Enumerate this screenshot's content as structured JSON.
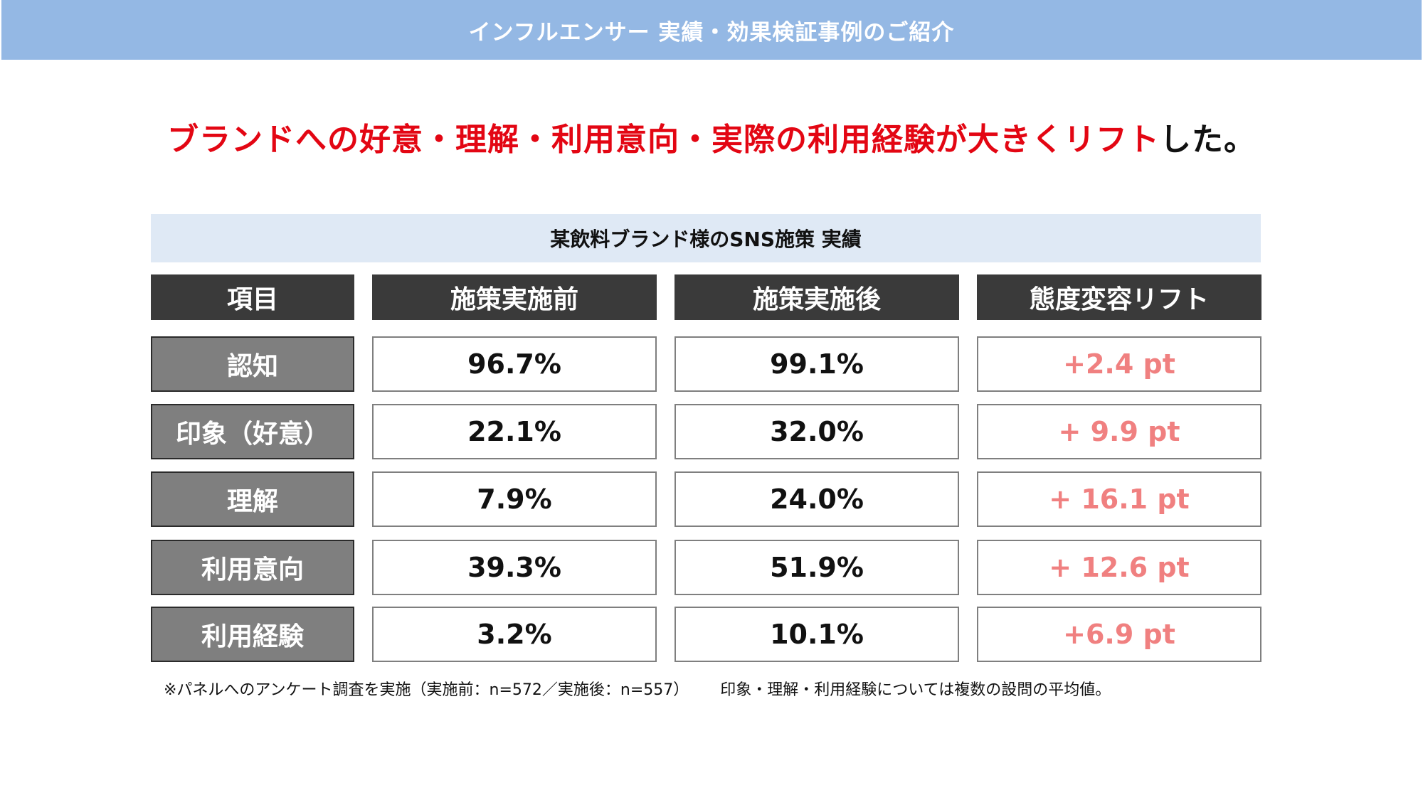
{
  "banner": {
    "title": "インフルエンサー 実績・効果検証事例のご紹介"
  },
  "headline": {
    "accent_text": "ブランドへの好意・理解・利用意向・実際の利用経験が大きくリフト",
    "suffix_text": "した。"
  },
  "table": {
    "caption": "某飲料ブランド様のSNS施策 実績",
    "headers": [
      "項目",
      "施策実施前",
      "施策実施後",
      "態度変容リフト"
    ],
    "rows": [
      {
        "label": "認知",
        "before": "96.7%",
        "after": "99.1%",
        "lift": "+2.4 pt"
      },
      {
        "label": "印象（好意）",
        "before": "22.1%",
        "after": "32.0%",
        "lift": "+ 9.9 pt"
      },
      {
        "label": "理解",
        "before": "7.9%",
        "after": "24.0%",
        "lift": "+ 16.1 pt"
      },
      {
        "label": "利用意向",
        "before": "39.3%",
        "after": "51.9%",
        "lift": "+ 12.6 pt"
      },
      {
        "label": "利用経験",
        "before": "3.2%",
        "after": "10.1%",
        "lift": "+6.9 pt"
      }
    ]
  },
  "footnote": {
    "survey": "※パネルへのアンケート調査を実施（実施前：n=572／実施後：n=557）",
    "note": "印象・理解・利用経験については複数の設問の平均値。"
  },
  "colors": {
    "banner": "#94b8e4",
    "accent_red": "#e30613",
    "lift_pink": "#f08080",
    "header_dark": "#3a3a3a",
    "label_gray": "#7f7f7f",
    "caption_bg": "#dfe9f5"
  }
}
